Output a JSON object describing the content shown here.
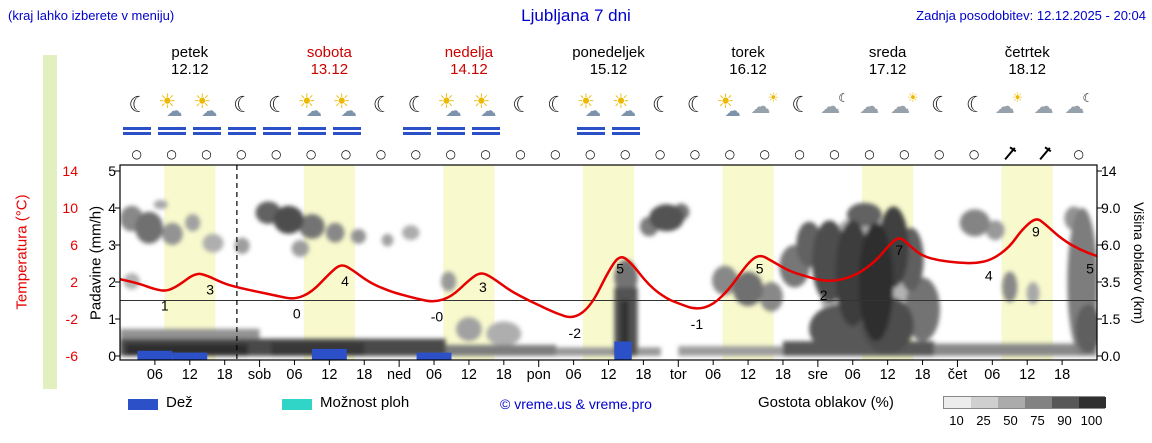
{
  "meta": {
    "hint": "(kraj lahko izberete v meniju)",
    "title": "Ljubljana 7 dni",
    "updated": "Zadnja posodobitev: 12.12.2025 - 20:04"
  },
  "colors": {
    "link_blue": "#0000cc",
    "temp_red": "#e60000",
    "weekend_red": "#cc0000",
    "day_black": "#000000",
    "rain_blue": "#2b50c8",
    "showers_cyan": "#30d5c8",
    "daylight_band": "#f8f9cd",
    "side_bar_green": "#e2f0c0"
  },
  "days": [
    {
      "name": "petek",
      "date": "12.12",
      "weekend": false
    },
    {
      "name": "sobota",
      "date": "13.12",
      "weekend": true
    },
    {
      "name": "nedelja",
      "date": "14.12",
      "weekend": true
    },
    {
      "name": "ponedeljek",
      "date": "15.12",
      "weekend": false
    },
    {
      "name": "torek",
      "date": "16.12",
      "weekend": false
    },
    {
      "name": "sreda",
      "date": "17.12",
      "weekend": false
    },
    {
      "name": "četrtek",
      "date": "18.12",
      "weekend": false
    }
  ],
  "axes": {
    "temperature": {
      "label": "Temperatura (°C)",
      "ticks": [
        "14",
        "10",
        "6",
        "2",
        "-2",
        "-6"
      ]
    },
    "precipitation": {
      "label": "Padavine (mm/h)",
      "ticks": [
        "5",
        "4",
        "3",
        "2",
        "1",
        "0"
      ]
    },
    "cloud_height": {
      "label": "Višina oblakov (km)",
      "ticks": [
        "14",
        "9.0",
        "6.0",
        "3.5",
        "1.5",
        "0.0"
      ]
    }
  },
  "x_labels": [
    "06",
    "12",
    "18",
    "sob",
    "06",
    "12",
    "18",
    "ned",
    "06",
    "12",
    "18",
    "pon",
    "06",
    "12",
    "18",
    "tor",
    "06",
    "12",
    "18",
    "sre",
    "06",
    "12",
    "18",
    "čet",
    "06",
    "12",
    "18"
  ],
  "icon_glyphs": {
    "moon": "☾",
    "sun": "☀",
    "cloud": "☁",
    "calm_wind": "○"
  },
  "icons": [
    {
      "type": "moon",
      "rain": true
    },
    {
      "type": "sun-cloud",
      "rain": true
    },
    {
      "type": "sun-cloud",
      "rain": true
    },
    {
      "type": "moon",
      "rain": true
    },
    {
      "type": "moon",
      "rain": true
    },
    {
      "type": "sun-cloud",
      "rain": true
    },
    {
      "type": "sun-cloud",
      "rain": true
    },
    {
      "type": "moon",
      "rain": false
    },
    {
      "type": "moon",
      "rain": true
    },
    {
      "type": "sun-cloud",
      "rain": true
    },
    {
      "type": "sun-cloud",
      "rain": true
    },
    {
      "type": "moon",
      "rain": false
    },
    {
      "type": "moon",
      "rain": false
    },
    {
      "type": "sun-cloud",
      "rain": true
    },
    {
      "type": "sun-cloud",
      "rain": true
    },
    {
      "type": "moon",
      "rain": false
    },
    {
      "type": "moon",
      "rain": false
    },
    {
      "type": "sun-cloud",
      "rain": false
    },
    {
      "type": "cloud-sun",
      "rain": false
    },
    {
      "type": "moon",
      "rain": false
    },
    {
      "type": "cloud-moon",
      "rain": false
    },
    {
      "type": "cloud",
      "rain": false
    },
    {
      "type": "cloud-sun",
      "rain": false
    },
    {
      "type": "moon",
      "rain": false
    },
    {
      "type": "moon",
      "rain": false
    },
    {
      "type": "cloud-sun",
      "rain": false
    },
    {
      "type": "cloud",
      "rain": false
    },
    {
      "type": "cloud-moon",
      "rain": false
    }
  ],
  "wind": [
    "calm",
    "calm",
    "calm",
    "calm",
    "calm",
    "calm",
    "calm",
    "calm",
    "calm",
    "calm",
    "calm",
    "calm",
    "calm",
    "calm",
    "calm",
    "calm",
    "calm",
    "calm",
    "calm",
    "calm",
    "calm",
    "calm",
    "calm",
    "calm",
    "calm",
    "barb",
    "barb",
    "calm"
  ],
  "legend": {
    "rain_label": "Dež",
    "showers_label": "Možnost ploh",
    "copyright": "© vreme.us & vreme.pro",
    "cloud_density_label": "Gostota oblakov (%)",
    "density_ticks": [
      "10",
      "25",
      "50",
      "75",
      "90",
      "100"
    ],
    "density_colors": [
      "#ececec",
      "#cfcfcf",
      "#ababab",
      "#828282",
      "#575757",
      "#2f2f2f"
    ]
  },
  "chart_data": {
    "type": "line",
    "title": "Ljubljana 7 dni",
    "x_unit": "hours from petek 12.12 00:00",
    "x_range": [
      0,
      168
    ],
    "daylight_band_hours": [
      7.6,
      16.4
    ],
    "now_hour": 20.1,
    "zero_line_temp_c": 0,
    "y_axis_left_temp_c": [
      14,
      10,
      6,
      2,
      -2,
      -6
    ],
    "y_axis_left_precip_mmh": [
      5,
      4,
      3,
      2,
      1,
      0
    ],
    "y_axis_right_cloud_km": [
      14,
      9.0,
      6.0,
      3.5,
      1.5,
      0.0
    ],
    "daily_temps": [
      {
        "day": "petek",
        "min": "1",
        "max": "3"
      },
      {
        "day": "sobota",
        "min": "0",
        "max": "4"
      },
      {
        "day": "nedelja",
        "min": "-0",
        "max": "3"
      },
      {
        "day": "ponedeljek",
        "min": "-2",
        "max": "5"
      },
      {
        "day": "torek",
        "min": "-1",
        "max": "5"
      },
      {
        "day": "sreda",
        "min": "2",
        "max": "7"
      },
      {
        "day": "četrtek",
        "min": "4",
        "max": "9",
        "evening": "5"
      }
    ],
    "temperature": {
      "unit": "°C",
      "points": [
        [
          0,
          2.3
        ],
        [
          3,
          1.9
        ],
        [
          6,
          1.2
        ],
        [
          8,
          1.0
        ],
        [
          10,
          1.6
        ],
        [
          13,
          3.0
        ],
        [
          15,
          2.7
        ],
        [
          18,
          1.8
        ],
        [
          21,
          1.3
        ],
        [
          24,
          0.9
        ],
        [
          27,
          0.5
        ],
        [
          30,
          0.1
        ],
        [
          33,
          0.9
        ],
        [
          36,
          2.9
        ],
        [
          38,
          4.0
        ],
        [
          40,
          3.3
        ],
        [
          43,
          1.9
        ],
        [
          46,
          1.1
        ],
        [
          48,
          0.7
        ],
        [
          51,
          0.2
        ],
        [
          54,
          -0.2
        ],
        [
          57,
          0.4
        ],
        [
          60,
          2.2
        ],
        [
          62,
          3.1
        ],
        [
          64,
          2.5
        ],
        [
          67,
          1.1
        ],
        [
          70,
          0.1
        ],
        [
          72,
          -0.5
        ],
        [
          75,
          -1.4
        ],
        [
          78,
          -2.0
        ],
        [
          81,
          -0.6
        ],
        [
          84,
          3.2
        ],
        [
          86,
          5.0
        ],
        [
          88,
          4.0
        ],
        [
          91,
          1.6
        ],
        [
          94,
          0.2
        ],
        [
          96,
          -0.3
        ],
        [
          99,
          -1.0
        ],
        [
          102,
          -0.5
        ],
        [
          105,
          1.4
        ],
        [
          108,
          4.1
        ],
        [
          110,
          5.0
        ],
        [
          112,
          4.3
        ],
        [
          115,
          3.2
        ],
        [
          118,
          2.6
        ],
        [
          121,
          2.1
        ],
        [
          124,
          2.2
        ],
        [
          127,
          2.9
        ],
        [
          130,
          4.3
        ],
        [
          132,
          5.8
        ],
        [
          134,
          7.0
        ],
        [
          136,
          5.8
        ],
        [
          138,
          4.8
        ],
        [
          141,
          4.3
        ],
        [
          144,
          4.1
        ],
        [
          147,
          4.0
        ],
        [
          150,
          4.4
        ],
        [
          153,
          5.8
        ],
        [
          155,
          7.6
        ],
        [
          157.5,
          9.0
        ],
        [
          159,
          8.3
        ],
        [
          162,
          6.6
        ],
        [
          165,
          5.5
        ],
        [
          168,
          4.8
        ]
      ]
    },
    "extreme_label_format": [
      "hour",
      "label",
      "temp_at"
    ],
    "extreme_labels": [
      [
        7.7,
        "1",
        1.0
      ],
      [
        15.5,
        "3",
        2.7
      ],
      [
        30.4,
        "0",
        0.1
      ],
      [
        38.7,
        "4",
        3.6
      ],
      [
        54.5,
        "-0",
        -0.2
      ],
      [
        62.4,
        "3",
        3.0
      ],
      [
        78.2,
        "-2",
        -2.0
      ],
      [
        86,
        "5",
        5.0
      ],
      [
        99.2,
        "-1",
        -1.0
      ],
      [
        110,
        "5",
        5.0
      ],
      [
        121,
        "2",
        2.1
      ],
      [
        134,
        "7",
        7.0
      ],
      [
        149.4,
        "4",
        4.2
      ],
      [
        157.5,
        "9",
        9.0
      ],
      [
        167.3,
        "5",
        5.0
      ]
    ],
    "cloud_ellipse_format": [
      "t_hour",
      "km",
      "rx_hours",
      "ry_km",
      "shade_0_1"
    ],
    "cloud_ellipses": [
      [
        2,
        8.2,
        2,
        1.1,
        0.5
      ],
      [
        5,
        7.4,
        2.4,
        1.3,
        0.62
      ],
      [
        9,
        6.9,
        1.8,
        0.9,
        0.45
      ],
      [
        12.5,
        7.8,
        1.3,
        0.7,
        0.38
      ],
      [
        16,
        6.2,
        1.8,
        0.7,
        0.32
      ],
      [
        21,
        6.0,
        1.3,
        0.6,
        0.4
      ],
      [
        2,
        3.6,
        1.4,
        0.5,
        0.3
      ],
      [
        7,
        9.5,
        1.2,
        0.6,
        0.35
      ],
      [
        25.5,
        8.8,
        2.2,
        1.1,
        0.68
      ],
      [
        29,
        8.1,
        2.6,
        1.2,
        0.78
      ],
      [
        33,
        7.5,
        2.2,
        1.0,
        0.6
      ],
      [
        37,
        7.0,
        1.6,
        0.8,
        0.5
      ],
      [
        41,
        6.7,
        1.3,
        0.6,
        0.45
      ],
      [
        46,
        6.4,
        1.0,
        0.5,
        0.38
      ],
      [
        31,
        5.8,
        1.5,
        0.6,
        0.4
      ],
      [
        50,
        7.0,
        1.5,
        0.6,
        0.33
      ],
      [
        56.5,
        3.6,
        1.3,
        0.6,
        0.42
      ],
      [
        60,
        1.1,
        2.2,
        0.5,
        0.38
      ],
      [
        66,
        0.9,
        3,
        0.5,
        0.32
      ],
      [
        87,
        3.9,
        2,
        1.1,
        0.6
      ],
      [
        94,
        8.3,
        3,
        1.2,
        0.75
      ],
      [
        91,
        7.5,
        1.6,
        0.8,
        0.55
      ],
      [
        96.5,
        8.8,
        1.4,
        0.8,
        0.6
      ],
      [
        104,
        3.7,
        2.2,
        0.9,
        0.5
      ],
      [
        108,
        3.2,
        2.6,
        1.0,
        0.62
      ],
      [
        112,
        2.7,
        2,
        0.8,
        0.5
      ],
      [
        116,
        4.6,
        2.6,
        1.4,
        0.58
      ],
      [
        118.5,
        6.2,
        2.2,
        1.7,
        0.68
      ],
      [
        122,
        5.2,
        3,
        2.8,
        0.78
      ],
      [
        126,
        4.6,
        3,
        3.4,
        0.86
      ],
      [
        130,
        4.2,
        3,
        3.6,
        0.92
      ],
      [
        133,
        6.2,
        2.6,
        3,
        0.84
      ],
      [
        128,
        8.6,
        3,
        1.1,
        0.68
      ],
      [
        136,
        5.2,
        2.2,
        2.2,
        0.7
      ],
      [
        124,
        1.2,
        5.5,
        1.1,
        0.72
      ],
      [
        132,
        1.4,
        4.5,
        1.3,
        0.78
      ],
      [
        138,
        2.2,
        3,
        1.6,
        0.6
      ],
      [
        128,
        4.5,
        8,
        4,
        0.3
      ],
      [
        147,
        7.8,
        2.6,
        1.1,
        0.52
      ],
      [
        150.5,
        7.2,
        1.6,
        0.8,
        0.42
      ],
      [
        153,
        3.3,
        1.3,
        0.9,
        0.5
      ],
      [
        157,
        2.9,
        1.1,
        0.6,
        0.35
      ],
      [
        165.5,
        4.5,
        2.6,
        4.5,
        0.55
      ],
      [
        166.5,
        1.2,
        2.2,
        1.1,
        0.7
      ],
      [
        164,
        8.2,
        1.6,
        1.0,
        0.45
      ]
    ],
    "cloud_band_format": [
      "t0",
      "t1",
      "km0",
      "km1",
      "shade_0_1"
    ],
    "cloud_bands": [
      [
        0,
        56,
        0,
        0.7,
        0.8
      ],
      [
        1,
        22,
        0,
        0.5,
        0.93
      ],
      [
        26,
        42,
        0,
        0.55,
        0.88
      ],
      [
        44,
        55,
        0,
        0.45,
        0.72
      ],
      [
        0,
        24,
        0.6,
        1.1,
        0.45
      ],
      [
        55,
        75,
        0,
        0.45,
        0.55
      ],
      [
        75,
        93,
        0,
        0.35,
        0.42
      ],
      [
        85,
        89,
        0,
        3.2,
        0.75
      ],
      [
        86,
        87.5,
        0,
        2.5,
        0.9
      ],
      [
        96,
        114,
        0,
        0.4,
        0.4
      ],
      [
        114,
        140,
        0,
        0.6,
        0.72
      ],
      [
        140,
        168,
        0,
        0.5,
        0.5
      ]
    ],
    "precip_bar_format": [
      "t0",
      "t1",
      "mm_per_h"
    ],
    "precip_bars": [
      [
        3,
        9,
        0.25
      ],
      [
        9,
        15,
        0.2
      ],
      [
        33,
        39,
        0.3
      ],
      [
        51,
        57,
        0.2
      ],
      [
        85,
        88,
        0.5
      ]
    ]
  }
}
